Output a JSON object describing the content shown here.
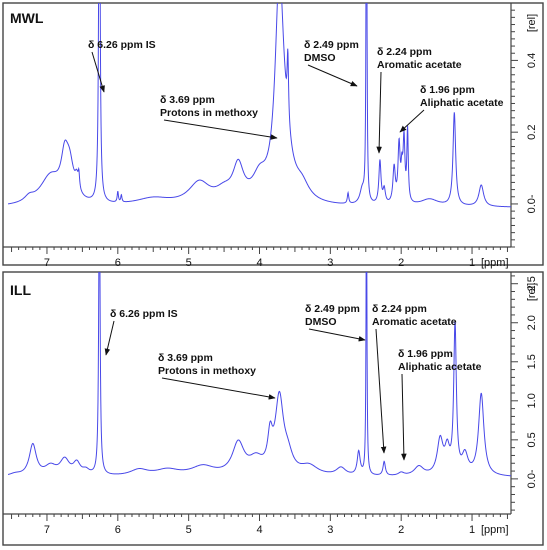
{
  "colors": {
    "spectrum": "#4848e8",
    "frame": "#444444",
    "arrow": "#111111"
  },
  "chart_data": [
    {
      "type": "line",
      "panel_label": "MWL",
      "xlabel": "[ppm]",
      "ylabel": "[rel]",
      "x_reversed": true,
      "xlim": [
        7.55,
        0.45
      ],
      "ylim": [
        -0.12,
        0.56
      ],
      "x_ticks": [
        7,
        6,
        5,
        4,
        3,
        2,
        1
      ],
      "y_ticks": [
        {
          "value": 0.0,
          "label": "0.0-"
        },
        {
          "value": 0.2,
          "label": "0.2"
        },
        {
          "value": 0.4,
          "label": "0.4"
        }
      ],
      "baseline": -0.01,
      "series": [
        {
          "peaks": [
            {
              "x": 7.25,
              "h": 0.015,
              "w": 0.08
            },
            {
              "x": 6.95,
              "h": 0.08,
              "w": 0.18
            },
            {
              "x": 6.75,
              "h": 0.1,
              "w": 0.06
            },
            {
              "x": 6.68,
              "h": 0.09,
              "w": 0.07
            },
            {
              "x": 6.58,
              "h": 0.04,
              "w": 0.03
            },
            {
              "x": 6.55,
              "h": 0.04,
              "w": 0.012
            },
            {
              "x": 6.26,
              "h": 1.2,
              "w": 0.011
            },
            {
              "x": 6.0,
              "h": 0.03,
              "w": 0.01
            },
            {
              "x": 5.95,
              "h": 0.02,
              "w": 0.01
            },
            {
              "x": 5.5,
              "h": 0.02,
              "w": 0.3
            },
            {
              "x": 4.85,
              "h": 0.06,
              "w": 0.18
            },
            {
              "x": 4.5,
              "h": 0.03,
              "w": 0.15
            },
            {
              "x": 4.3,
              "h": 0.095,
              "w": 0.09
            },
            {
              "x": 4.0,
              "h": 0.06,
              "w": 0.12
            },
            {
              "x": 3.72,
              "h": 0.55,
              "w": 0.07
            },
            {
              "x": 3.65,
              "h": 0.12,
              "w": 0.12
            },
            {
              "x": 3.6,
              "h": 0.18,
              "w": 0.012
            },
            {
              "x": 3.4,
              "h": 0.04,
              "w": 0.12
            },
            {
              "x": 2.75,
              "h": 0.03,
              "w": 0.012
            },
            {
              "x": 2.55,
              "h": 0.04,
              "w": 0.04
            },
            {
              "x": 2.49,
              "h": 1.2,
              "w": 0.007
            },
            {
              "x": 2.3,
              "h": 0.12,
              "w": 0.018
            },
            {
              "x": 2.24,
              "h": 0.04,
              "w": 0.02
            },
            {
              "x": 2.1,
              "h": 0.1,
              "w": 0.02
            },
            {
              "x": 2.03,
              "h": 0.16,
              "w": 0.018
            },
            {
              "x": 1.99,
              "h": 0.08,
              "w": 0.015
            },
            {
              "x": 1.96,
              "h": 0.17,
              "w": 0.015
            },
            {
              "x": 1.91,
              "h": 0.2,
              "w": 0.012
            },
            {
              "x": 1.6,
              "h": 0.02,
              "w": 0.15
            },
            {
              "x": 1.25,
              "h": 0.26,
              "w": 0.022
            },
            {
              "x": 0.87,
              "h": 0.06,
              "w": 0.04
            }
          ]
        }
      ],
      "annotations": [
        {
          "lines": [
            "δ 6.26 ppm IS"
          ],
          "x": 6.26,
          "y": 0.41
        },
        {
          "lines": [
            "δ 3.69  ppm",
            "Protons in methoxy"
          ],
          "x": 3.72,
          "y": 0.24
        },
        {
          "lines": [
            "δ 2.49 ppm",
            "DMSO"
          ],
          "x": 2.49,
          "y": 0.42
        },
        {
          "lines": [
            "δ 2.24 ppm",
            "Aromatic acetate"
          ],
          "x": 2.27,
          "y": 0.16
        },
        {
          "lines": [
            "δ 1.96 ppm",
            "Aliphatic acetate"
          ],
          "x": 1.93,
          "y": 0.235
        }
      ]
    },
    {
      "type": "line",
      "panel_label": "ILL",
      "xlabel": "[ppm]",
      "ylabel": "[rel]",
      "x_reversed": true,
      "xlim": [
        7.55,
        0.45
      ],
      "ylim": [
        -0.45,
        2.65
      ],
      "x_ticks": [
        7,
        6,
        5,
        4,
        3,
        2,
        1
      ],
      "y_ticks": [
        {
          "value": 0.0,
          "label": "0.0-"
        },
        {
          "value": 0.5,
          "label": "0.5"
        },
        {
          "value": 1.0,
          "label": "1.0"
        },
        {
          "value": 1.5,
          "label": "1.5"
        },
        {
          "value": 2.0,
          "label": "2.0"
        },
        {
          "value": 2.5,
          "label": "2.5"
        }
      ],
      "baseline": 0.02,
      "series": [
        {
          "peaks": [
            {
              "x": 7.45,
              "h": 0.03,
              "w": 0.1
            },
            {
              "x": 7.2,
              "h": 0.4,
              "w": 0.06
            },
            {
              "x": 6.95,
              "h": 0.12,
              "w": 0.1
            },
            {
              "x": 6.75,
              "h": 0.2,
              "w": 0.08
            },
            {
              "x": 6.58,
              "h": 0.15,
              "w": 0.06
            },
            {
              "x": 6.45,
              "h": 0.06,
              "w": 0.06
            },
            {
              "x": 6.26,
              "h": 4.0,
              "w": 0.011
            },
            {
              "x": 5.7,
              "h": 0.08,
              "w": 0.15
            },
            {
              "x": 5.3,
              "h": 0.08,
              "w": 0.2
            },
            {
              "x": 4.8,
              "h": 0.12,
              "w": 0.2
            },
            {
              "x": 4.3,
              "h": 0.4,
              "w": 0.1
            },
            {
              "x": 4.05,
              "h": 0.18,
              "w": 0.12
            },
            {
              "x": 3.85,
              "h": 0.4,
              "w": 0.04
            },
            {
              "x": 3.72,
              "h": 0.95,
              "w": 0.07
            },
            {
              "x": 3.6,
              "h": 0.2,
              "w": 0.08
            },
            {
              "x": 3.3,
              "h": 0.12,
              "w": 0.15
            },
            {
              "x": 2.85,
              "h": 0.1,
              "w": 0.08
            },
            {
              "x": 2.6,
              "h": 0.3,
              "w": 0.025
            },
            {
              "x": 2.49,
              "h": 4.0,
              "w": 0.007
            },
            {
              "x": 2.24,
              "h": 0.18,
              "w": 0.02
            },
            {
              "x": 2.0,
              "h": 0.04,
              "w": 0.05
            },
            {
              "x": 1.75,
              "h": 0.12,
              "w": 0.08
            },
            {
              "x": 1.45,
              "h": 0.45,
              "w": 0.05
            },
            {
              "x": 1.35,
              "h": 0.3,
              "w": 0.04
            },
            {
              "x": 1.24,
              "h": 1.9,
              "w": 0.022
            },
            {
              "x": 1.1,
              "h": 0.25,
              "w": 0.05
            },
            {
              "x": 0.87,
              "h": 1.05,
              "w": 0.045
            }
          ]
        }
      ],
      "annotations": [
        {
          "lines": [
            "δ 6.26 ppm IS"
          ],
          "x": 6.24,
          "y": 1.6
        },
        {
          "lines": [
            "δ 3.69  ppm",
            "Protons in methoxy"
          ],
          "x": 3.72,
          "y": 1.02
        },
        {
          "lines": [
            "δ 2.49 ppm",
            "DMSO"
          ],
          "x": 2.49,
          "y": 1.9
        },
        {
          "lines": [
            "δ 2.24 ppm",
            "Aromatic acetate"
          ],
          "x": 2.24,
          "y": 0.22
        },
        {
          "lines": [
            "δ 1.96 ppm",
            "Aliphatic acetate"
          ],
          "x": 1.96,
          "y": 0.14
        }
      ]
    }
  ]
}
